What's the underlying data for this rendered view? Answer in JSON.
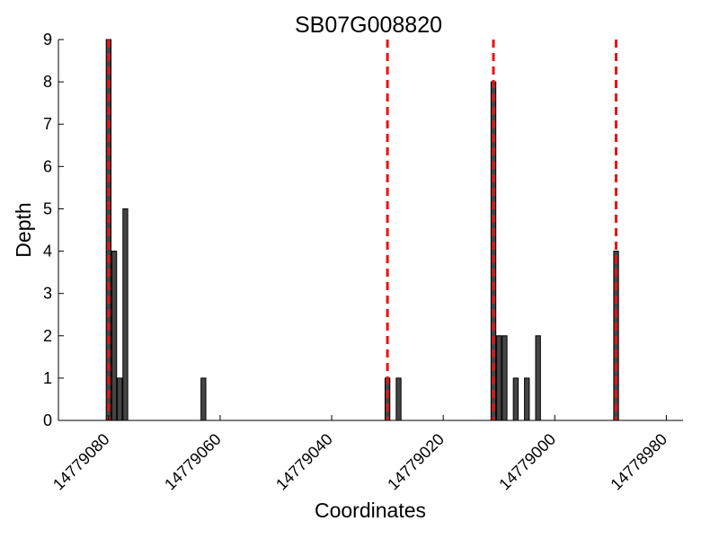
{
  "chart_data": {
    "type": "bar",
    "title": "SB07G008820",
    "xlabel": "Coordinates",
    "ylabel": "Depth",
    "x_axis_reversed": true,
    "xlim": [
      14779089,
      14778977
    ],
    "ylim": [
      0,
      9
    ],
    "xticks": [
      14779080,
      14779060,
      14779040,
      14779020,
      14779000,
      14778980
    ],
    "yticks": [
      0,
      1,
      2,
      3,
      4,
      5,
      6,
      7,
      8,
      9
    ],
    "grid": false,
    "bar_color": "#454545",
    "bar_edge_color": "#000000",
    "marker_line_color": "#ee1111",
    "bars": [
      {
        "x": 14779080,
        "depth": 9
      },
      {
        "x": 14779079,
        "depth": 4
      },
      {
        "x": 14779078,
        "depth": 1
      },
      {
        "x": 14779077,
        "depth": 5
      },
      {
        "x": 14779063,
        "depth": 1
      },
      {
        "x": 14779030,
        "depth": 1
      },
      {
        "x": 14779028,
        "depth": 1
      },
      {
        "x": 14779011,
        "depth": 8
      },
      {
        "x": 14779010,
        "depth": 2
      },
      {
        "x": 14779009,
        "depth": 2
      },
      {
        "x": 14779007,
        "depth": 1
      },
      {
        "x": 14779005,
        "depth": 1
      },
      {
        "x": 14779003,
        "depth": 2
      },
      {
        "x": 14778989,
        "depth": 4
      }
    ],
    "marker_lines": [
      14779080,
      14779030,
      14779011,
      14778989
    ]
  }
}
